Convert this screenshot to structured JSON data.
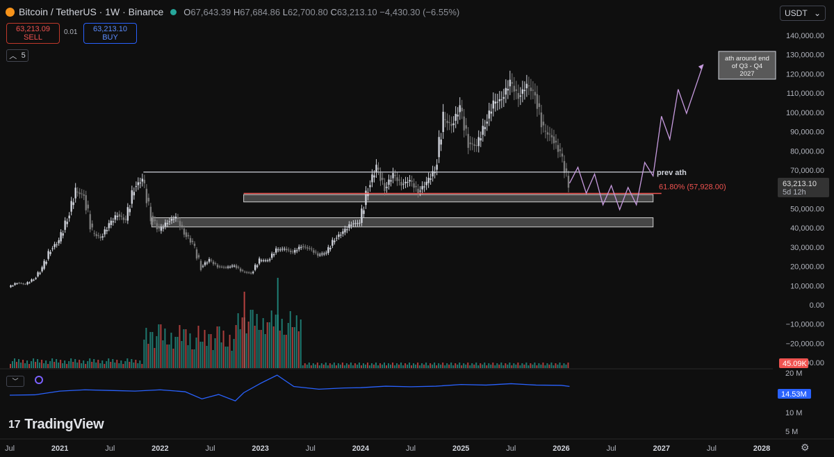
{
  "header": {
    "symbol": "Bitcoin / TetherUS · 1W · Binance",
    "ohlc": {
      "o_label": "O",
      "o": "67,643.39",
      "h_label": "H",
      "h": "67,684.86",
      "l_label": "L",
      "l": "62,700.80",
      "c_label": "C",
      "c": "63,213.10",
      "change": "−4,430.30 (−6.55%)"
    }
  },
  "trade": {
    "sell_price": "63,213.09",
    "sell_label": "SELL",
    "spread": "0.01",
    "buy_price": "63,213.10",
    "buy_label": "BUY"
  },
  "collapse": {
    "icon": "chevron-up-icon",
    "count": "5"
  },
  "currency": "USDT",
  "indicator_toggle": {
    "icon": "chevron-down-icon"
  },
  "brand": {
    "name": "TradingView",
    "mark": "17"
  },
  "colors": {
    "up": "#d1d4dc",
    "down": "#7a7a7a",
    "resistance": "#d1d4dc",
    "fib": "#ef5350",
    "projection": "#c79bdf",
    "indicator": "#2962ff",
    "vol_up": "#26a69a",
    "vol_down": "#ef5350",
    "zone": "#5a5a5a"
  },
  "chart_data": {
    "type": "line",
    "series": [
      {
        "name": "BTCUSDT 1W",
        "values": [
          [
            "2020-07",
            9200
          ],
          [
            "2020-08",
            11500
          ],
          [
            "2020-09",
            10700
          ],
          [
            "2020-10",
            13500
          ],
          [
            "2020-11",
            18800
          ],
          [
            "2020-12",
            29000
          ],
          [
            "2021-01",
            33000
          ],
          [
            "2021-02",
            45000
          ],
          [
            "2021-03",
            58800
          ],
          [
            "2021-04",
            57000
          ],
          [
            "2021-05",
            37300
          ],
          [
            "2021-06",
            35000
          ],
          [
            "2021-07",
            41500
          ],
          [
            "2021-08",
            47100
          ],
          [
            "2021-09",
            43800
          ],
          [
            "2021-10",
            61300
          ],
          [
            "2021-11",
            65000
          ],
          [
            "2021-12",
            46300
          ],
          [
            "2022-01",
            38500
          ],
          [
            "2022-02",
            43200
          ],
          [
            "2022-03",
            45500
          ],
          [
            "2022-04",
            37700
          ],
          [
            "2022-05",
            31800
          ],
          [
            "2022-06",
            19900
          ],
          [
            "2022-07",
            23300
          ],
          [
            "2022-08",
            20000
          ],
          [
            "2022-09",
            19400
          ],
          [
            "2022-10",
            20500
          ],
          [
            "2022-11",
            17200
          ],
          [
            "2022-12",
            16500
          ],
          [
            "2023-01",
            23100
          ],
          [
            "2023-02",
            23100
          ],
          [
            "2023-03",
            28500
          ],
          [
            "2023-04",
            29200
          ],
          [
            "2023-05",
            27200
          ],
          [
            "2023-06",
            30500
          ],
          [
            "2023-07",
            29200
          ],
          [
            "2023-08",
            26000
          ],
          [
            "2023-09",
            27000
          ],
          [
            "2023-10",
            34500
          ],
          [
            "2023-11",
            37700
          ],
          [
            "2023-12",
            42300
          ],
          [
            "2024-01",
            42600
          ],
          [
            "2024-02",
            61200
          ],
          [
            "2024-03",
            71300
          ],
          [
            "2024-04",
            60700
          ],
          [
            "2024-05",
            67500
          ],
          [
            "2024-06",
            62700
          ],
          [
            "2024-07",
            64600
          ],
          [
            "2024-08",
            58900
          ],
          [
            "2024-09",
            63300
          ],
          [
            "2024-10",
            70200
          ],
          [
            "2024-11",
            96400
          ],
          [
            "2024-12",
            93400
          ],
          [
            "2025-01",
            102400
          ],
          [
            "2025-02",
            84300
          ],
          [
            "2025-03",
            82500
          ],
          [
            "2025-04",
            94200
          ],
          [
            "2025-05",
            104600
          ],
          [
            "2025-06",
            107100
          ],
          [
            "2025-07",
            115700
          ],
          [
            "2025-08",
            108200
          ],
          [
            "2025-09",
            114000
          ],
          [
            "2025-10",
            109500
          ],
          [
            "2025-11",
            90400
          ],
          [
            "2025-12",
            87500
          ],
          [
            "2026-01",
            78600
          ],
          [
            "2026-02",
            63213
          ]
        ]
      },
      {
        "name": "",
        "values": [
          [
            "2026-02",
            63213
          ],
          [
            "2026-03",
            71500
          ],
          [
            "2026-04",
            58000
          ],
          [
            "2026-05",
            68000
          ],
          [
            "2026-06",
            52000
          ],
          [
            "2026-07",
            62000
          ],
          [
            "2026-08",
            49500
          ],
          [
            "2026-09",
            61000
          ],
          [
            "2026-10",
            52000
          ],
          [
            "2026-11",
            74000
          ],
          [
            "2026-12",
            67000
          ],
          [
            "2027-01",
            98000
          ],
          [
            "2027-02",
            86000
          ],
          [
            "2027-03",
            112000
          ],
          [
            "2027-04",
            99500
          ],
          [
            "2027-06",
            125000
          ]
        ]
      }
    ],
    "volume": {
      "name": "Volume",
      "last": "45.09K"
    },
    "indicator": {
      "last": "14.53M",
      "values": [
        [
          "2020-07",
          11.8
        ],
        [
          "2020-10",
          11.9
        ],
        [
          "2021-01",
          13.0
        ],
        [
          "2021-04",
          13.4
        ],
        [
          "2021-07",
          13.2
        ],
        [
          "2021-10",
          13.0
        ],
        [
          "2022-01",
          13.4
        ],
        [
          "2022-04",
          12.8
        ],
        [
          "2022-06",
          10.8
        ],
        [
          "2022-08",
          12.0
        ],
        [
          "2022-10",
          10.3
        ],
        [
          "2022-11",
          12.5
        ],
        [
          "2023-01",
          15.6
        ],
        [
          "2023-03",
          19.0
        ],
        [
          "2023-05",
          14.5
        ],
        [
          "2023-08",
          13.6
        ],
        [
          "2023-11",
          14.0
        ],
        [
          "2024-01",
          14.1
        ],
        [
          "2024-04",
          14.6
        ],
        [
          "2024-07",
          14.4
        ],
        [
          "2024-10",
          14.6
        ],
        [
          "2025-01",
          15.2
        ],
        [
          "2025-04",
          15.0
        ],
        [
          "2025-07",
          15.5
        ],
        [
          "2025-10",
          15.0
        ],
        [
          "2026-01",
          14.9
        ],
        [
          "2026-02",
          14.53
        ]
      ]
    },
    "hlines": [
      {
        "label": "prev ath",
        "value": 69000
      },
      {
        "label": "61.80% (57,928.00)",
        "value": 57928
      }
    ],
    "zones": [
      {
        "low": 53500,
        "high": 57300
      },
      {
        "low": 40500,
        "high": 45300
      }
    ],
    "annotation": "ath around end of Q3 - Q4 2027",
    "price_label": {
      "value": "63,213.10",
      "countdown": "5d 12h"
    },
    "xticks": [
      "Jul",
      "2021",
      "Jul",
      "2022",
      "Jul",
      "2023",
      "Jul",
      "2024",
      "Jul",
      "2025",
      "Jul",
      "2026",
      "Jul",
      "2027",
      "Jul",
      "2028"
    ],
    "yticks": [
      "140,000.00",
      "130,000.00",
      "120,000.00",
      "110,000.00",
      "100,000.00",
      "90,000.00",
      "80,000.00",
      "70,000.00",
      "60,000.00",
      "50,000.00",
      "40,000.00",
      "30,000.00",
      "20,000.00",
      "10,000.00",
      "0.00",
      "−10,000.00",
      "−20,000.00",
      "−30,000.00"
    ],
    "yticks2": [
      "20 M",
      "10 M",
      "5 M"
    ],
    "ylim": [
      -30000,
      140000
    ]
  }
}
